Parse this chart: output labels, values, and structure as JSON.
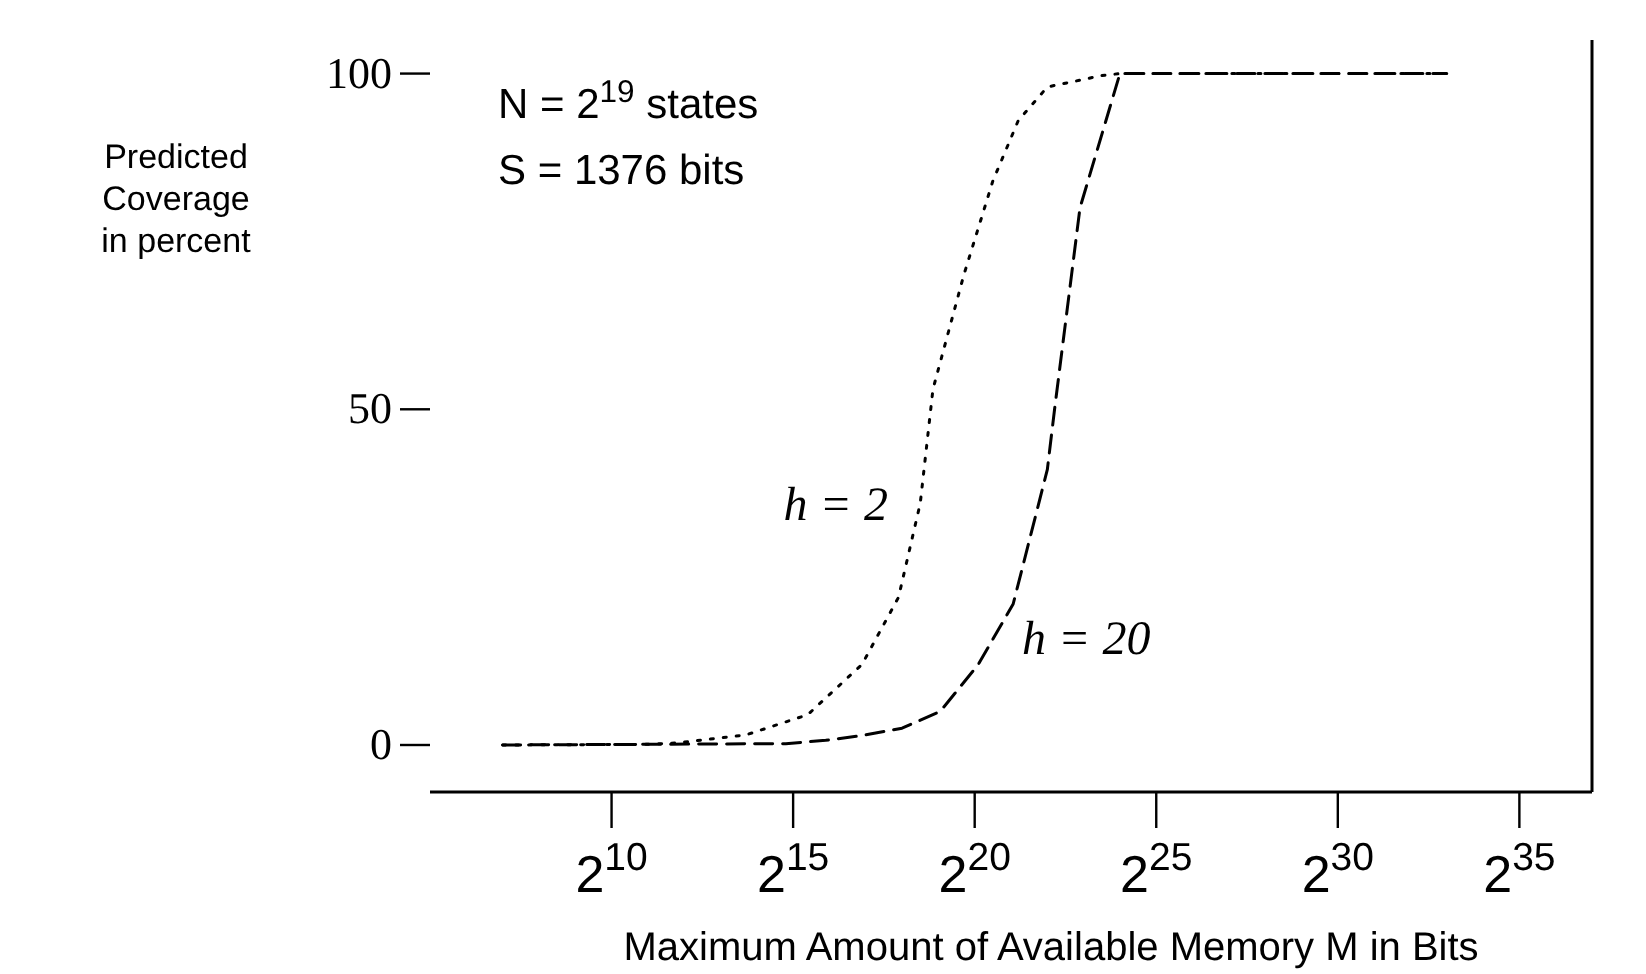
{
  "chart_data": {
    "type": "line",
    "xlabel": "Maximum Amount of Available Memory M in Bits",
    "ylabel": "Predicted Coverage in percent",
    "annotations": [
      "N = 2$^{19}$ states",
      "S = 1376 bits"
    ],
    "log": "x",
    "xlim": [
      32,
      137438953472
    ],
    "ylim": [
      -7,
      105
    ],
    "xticks": [
      {
        "value": 1024,
        "label": "2$^{10}$"
      },
      {
        "value": 32768,
        "label": "2$^{15}$"
      },
      {
        "value": 1048576,
        "label": "2$^{20}$"
      },
      {
        "value": 33554432,
        "label": "2$^{25}$"
      },
      {
        "value": 1073741824,
        "label": "2$^{30}$"
      },
      {
        "value": 34359738368,
        "label": "2$^{35}$"
      }
    ],
    "yticks": [
      0,
      50,
      100
    ],
    "grid": false,
    "legend": false,
    "marker": "none",
    "series": [
      {
        "name": "h = 2",
        "color": "#000000",
        "line_style": "dotted",
        "x": [
          128,
          2048,
          3570,
          13300,
          43200,
          122000,
          245000,
          371000,
          473000,
          852000,
          1483000,
          2409000,
          4194304,
          11860000,
          16777216,
          8589934592
        ],
        "values": [
          0,
          0.1,
          0.3,
          1.5,
          4.5,
          12,
          22,
          36,
          53,
          70,
          84,
          93,
          98,
          99.7,
          100,
          100
        ]
      },
      {
        "name": "h = 20",
        "color": "#000000",
        "line_style": "dashed",
        "x": [
          128,
          28500,
          61100,
          122000,
          262144,
          543000,
          1124000,
          2186000,
          4194304,
          4818000,
          7827000,
          16777216,
          8589934592
        ],
        "values": [
          0,
          0.2,
          0.7,
          1.4,
          2.5,
          5,
          12,
          21,
          41,
          50,
          80,
          100,
          100
        ]
      }
    ]
  }
}
